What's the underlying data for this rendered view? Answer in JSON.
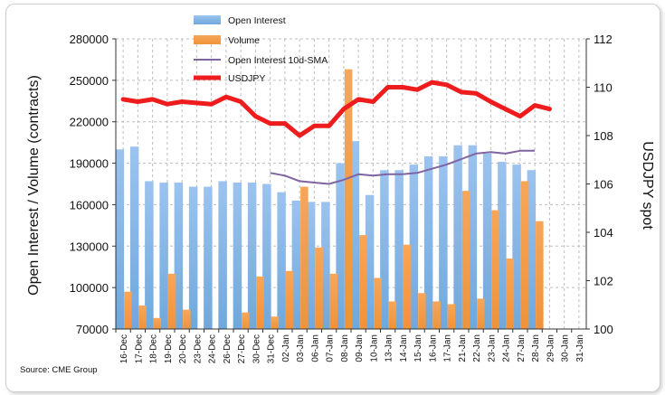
{
  "chart_data": {
    "type": "bar",
    "source_label": "Source: CME Group",
    "ylabel": "Open Interest / Volume (contracts)",
    "y2label": "USDJPY spot",
    "ylim": [
      70000,
      280000
    ],
    "y2lim": [
      100,
      112
    ],
    "y_ticks": [
      70000,
      100000,
      130000,
      160000,
      190000,
      220000,
      250000,
      280000
    ],
    "y_tick_labels": [
      "70000",
      "100000",
      "130000",
      "160000",
      "190000",
      "220000",
      "250000",
      "280000"
    ],
    "y2_ticks": [
      100,
      102,
      104,
      106,
      108,
      110,
      112
    ],
    "y2_tick_labels": [
      "100",
      "102",
      "104",
      "106",
      "108",
      "110",
      "112"
    ],
    "grid": "dashed horizontal and vertical",
    "legend_position": "top-center",
    "colors": {
      "open_interest": "#6fa8dc",
      "volume": "#f0933a",
      "sma": "#8064a2",
      "usdjpy": "#ee1c1c"
    },
    "categories": [
      "16-Dec",
      "17-Dec",
      "18-Dec",
      "19-Dec",
      "20-Dec",
      "23-Dec",
      "24-Dec",
      "26-Dec",
      "27-Dec",
      "30-Dec",
      "31-Dec",
      "02-Jan",
      "03-Jan",
      "06-Jan",
      "07-Jan",
      "08-Jan",
      "09-Jan",
      "10-Jan",
      "13-Jan",
      "14-Jan",
      "15-Jan",
      "16-Jan",
      "17-Jan",
      "21-Jan",
      "22-Jan",
      "23-Jan",
      "24-Jan",
      "27-Jan",
      "28-Jan",
      "29-Jan",
      "30-Jan",
      "31-Jan"
    ],
    "series": [
      {
        "name": "Open Interest",
        "kind": "bar",
        "axis": "left",
        "values": [
          200000,
          202000,
          177000,
          176000,
          176000,
          173000,
          173000,
          177000,
          176000,
          176000,
          175000,
          169000,
          163000,
          162000,
          162000,
          190000,
          206000,
          167000,
          185000,
          185000,
          189000,
          195000,
          195000,
          203000,
          203000,
          197000,
          191000,
          189000,
          185000,
          null,
          null,
          null
        ]
      },
      {
        "name": "Volume",
        "kind": "bar",
        "axis": "left",
        "values": [
          97000,
          87000,
          78000,
          110000,
          84000,
          null,
          null,
          null,
          82000,
          108000,
          79000,
          112000,
          173000,
          129000,
          110000,
          258000,
          138000,
          107000,
          90000,
          131000,
          96000,
          90000,
          88000,
          170000,
          92000,
          156000,
          121000,
          177000,
          148000,
          null,
          null,
          null
        ]
      },
      {
        "name": "Open Interest 10d-SMA",
        "kind": "line",
        "axis": "left",
        "values": [
          null,
          null,
          null,
          null,
          null,
          null,
          null,
          null,
          null,
          null,
          183000,
          181000,
          177000,
          176000,
          175000,
          178000,
          182000,
          181000,
          182000,
          182000,
          183000,
          186000,
          189000,
          193000,
          197000,
          198000,
          197000,
          199000,
          199000,
          null,
          null,
          null
        ]
      },
      {
        "name": "USDJPY",
        "kind": "line",
        "axis": "right",
        "values": [
          109.5,
          109.4,
          109.5,
          109.3,
          109.4,
          109.35,
          109.3,
          109.6,
          109.4,
          108.8,
          108.5,
          108.5,
          108.0,
          108.4,
          108.4,
          109.1,
          109.5,
          109.4,
          110.0,
          110.0,
          109.9,
          110.2,
          110.1,
          109.8,
          109.75,
          109.4,
          109.1,
          108.8,
          109.25,
          109.1,
          null,
          null
        ]
      }
    ]
  }
}
